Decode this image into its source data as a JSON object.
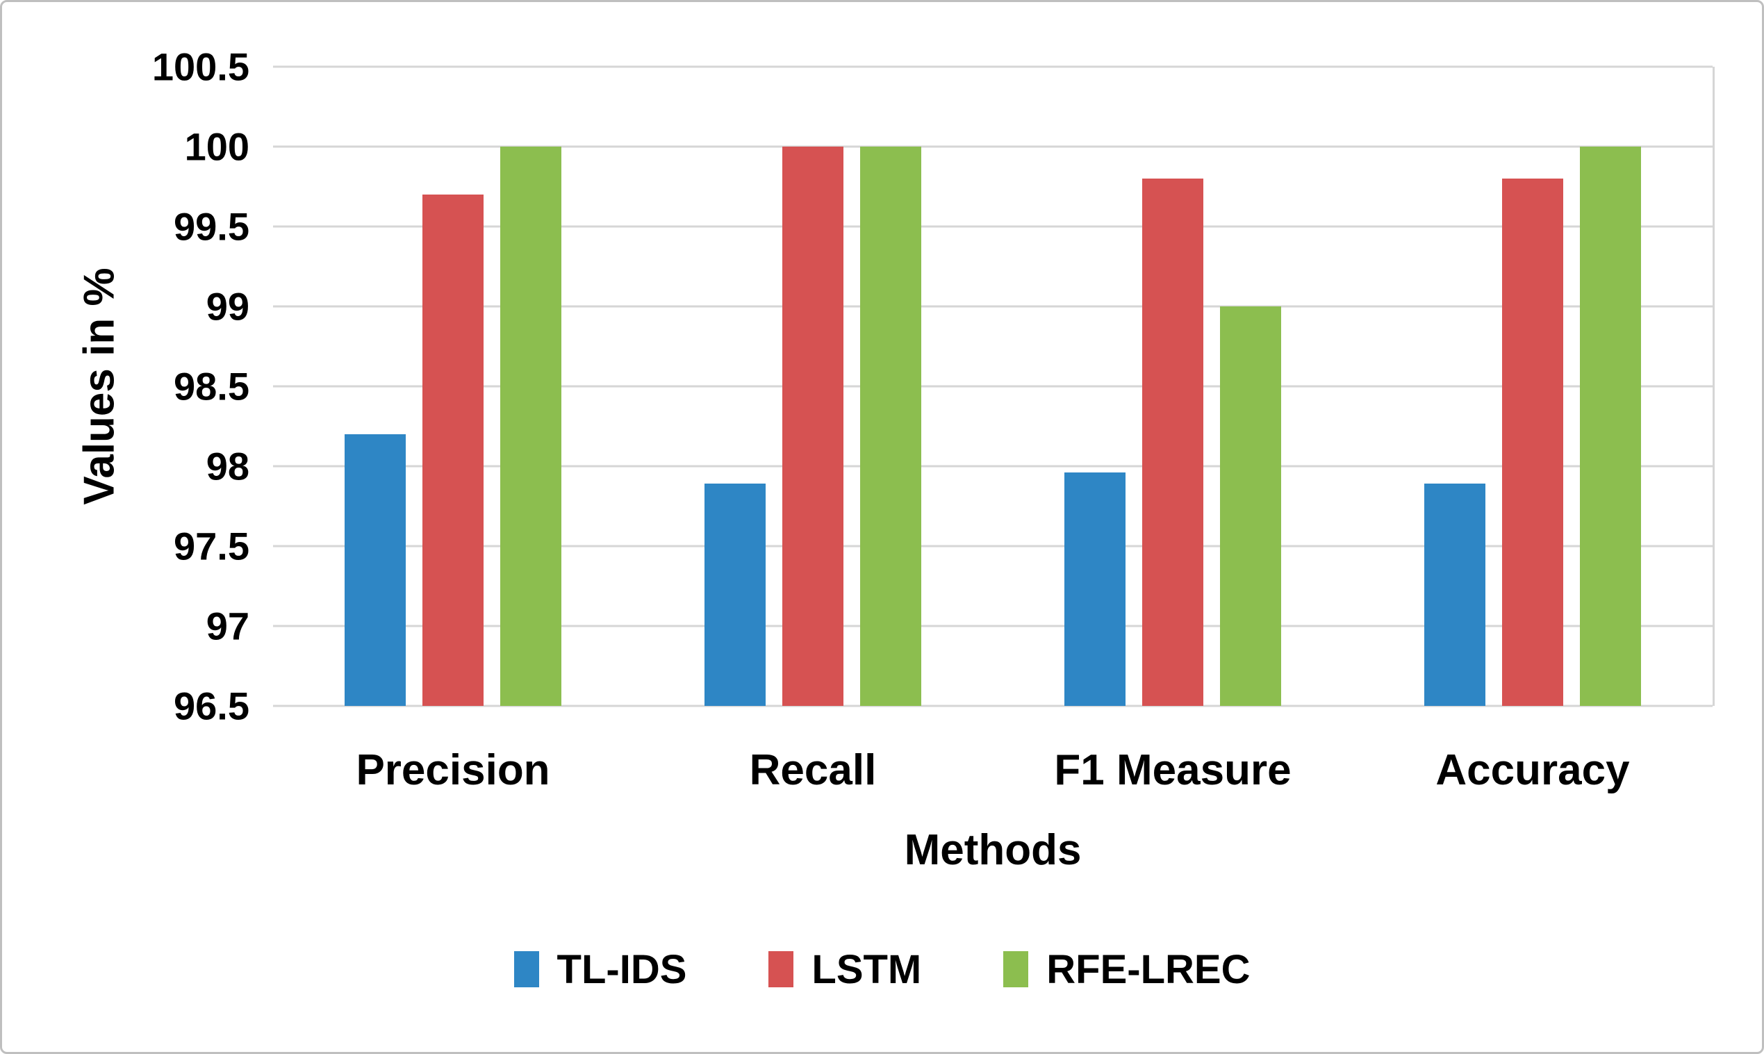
{
  "figure": {
    "background": "#ffffff",
    "border_color": "#bfbfbf",
    "text_color": "#000000"
  },
  "chart_data": {
    "type": "bar",
    "title": "",
    "categories": [
      "Precision",
      "Recall",
      "F1 Measure",
      "Accuracy"
    ],
    "series": [
      {
        "name": "TL-IDS",
        "color": "#2E86C5",
        "values": [
          98.2,
          97.89,
          97.96,
          97.89
        ]
      },
      {
        "name": "LSTM",
        "color": "#D65252",
        "values": [
          99.7,
          100,
          99.8,
          99.8
        ]
      },
      {
        "name": "RFE-LREC",
        "color": "#8CBE4F",
        "values": [
          100,
          100,
          99,
          100
        ]
      }
    ],
    "xlabel": "Methods",
    "ylabel": "Values in %",
    "ylim": [
      96.5,
      100.5
    ],
    "ytick_step": 0.5,
    "yticks": [
      "100.5",
      "100",
      "99.5",
      "99",
      "98.5",
      "98",
      "97.5",
      "97",
      "96.5"
    ],
    "grid": "horizontal",
    "gridline_color": "#d6d6d6",
    "legend_position": "bottom",
    "legend_labels": [
      "TL-IDS",
      "LSTM",
      "RFE-LREC"
    ]
  }
}
